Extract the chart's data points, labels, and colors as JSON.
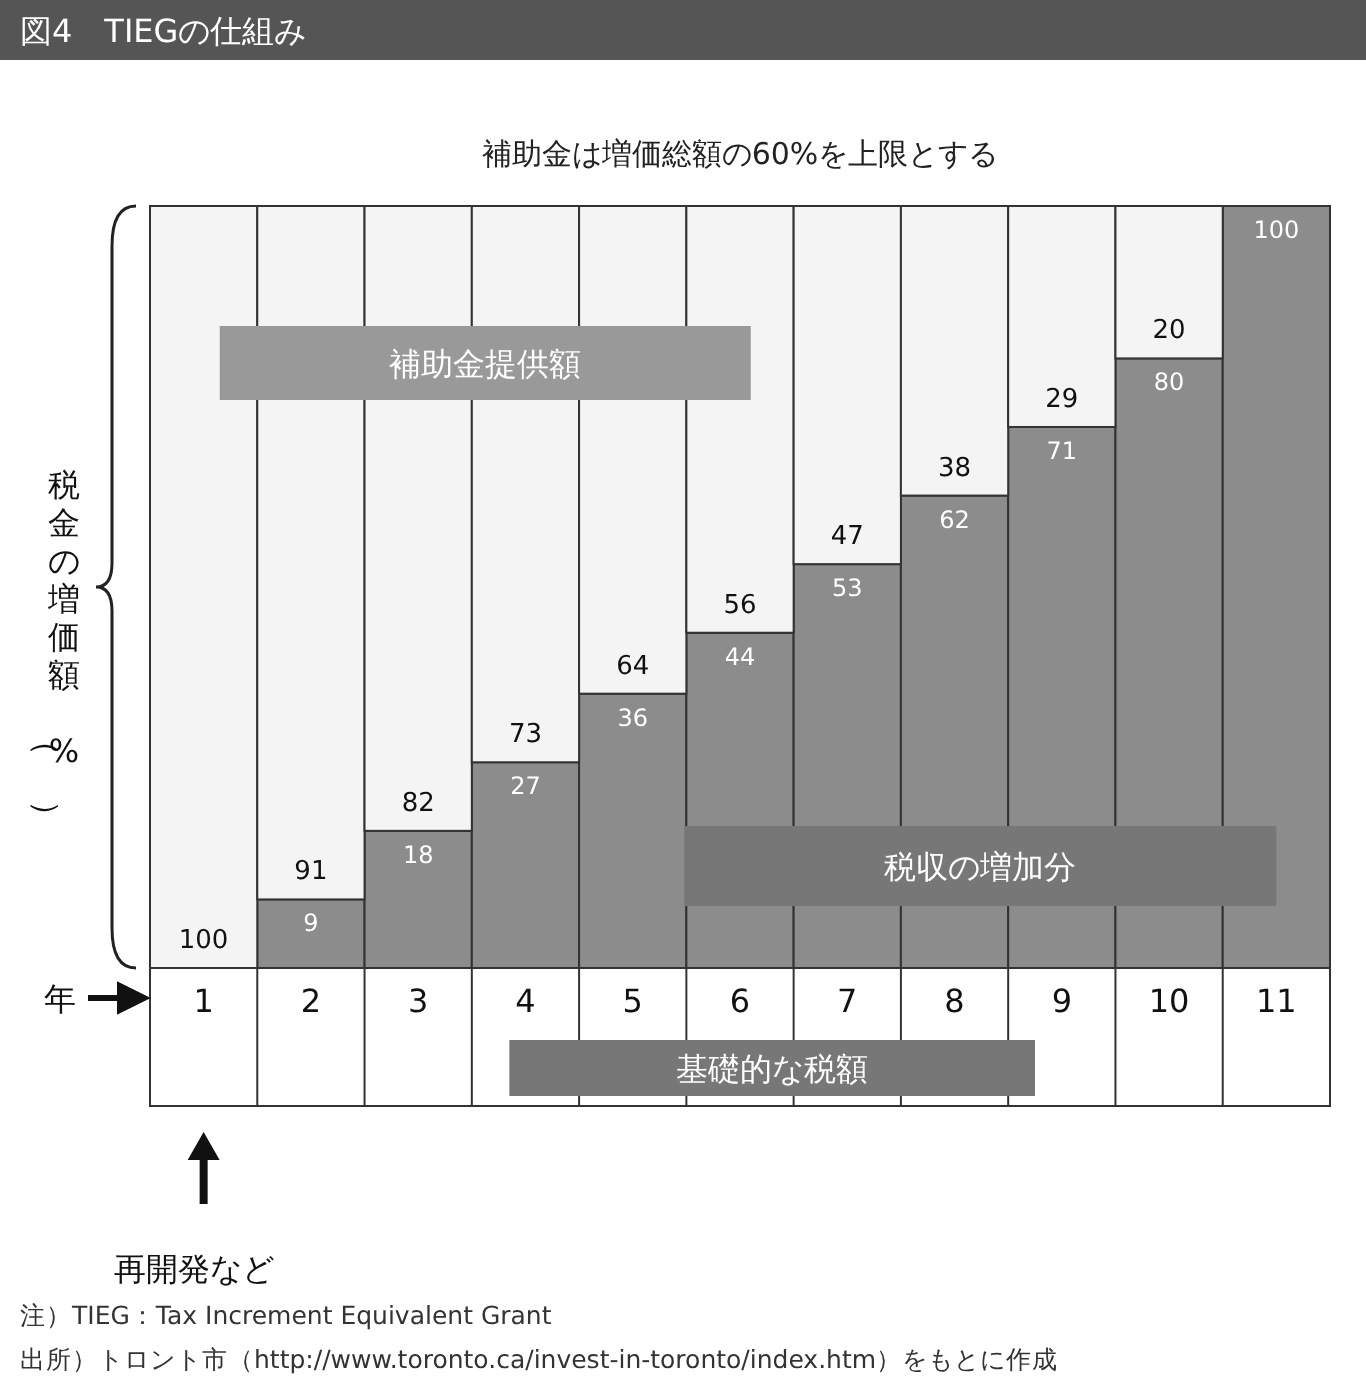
{
  "chart_data": {
    "type": "bar",
    "stacked": true,
    "title": "図4　TIEGの仕組み",
    "subtitle": "補助金は増価総額の60%を上限とする",
    "ylabel": "税金の増価額（%）",
    "xlabel": "年",
    "categories": [
      "1",
      "2",
      "3",
      "4",
      "5",
      "6",
      "7",
      "8",
      "9",
      "10",
      "11"
    ],
    "ylim": [
      0,
      100
    ],
    "series": [
      {
        "name": "税収の増加分",
        "color": "#8c8c8c",
        "values": [
          0,
          9,
          18,
          27,
          36,
          44,
          53,
          62,
          71,
          80,
          100
        ],
        "value_labels": [
          null,
          "9",
          "18",
          "27",
          "36",
          "44",
          "53",
          "62",
          "71",
          "80",
          "100"
        ]
      },
      {
        "name": "補助金提供額",
        "color": "#f4f4f4",
        "values": [
          100,
          91,
          82,
          73,
          64,
          56,
          47,
          38,
          29,
          20,
          0
        ],
        "value_labels": [
          "100",
          "91",
          "82",
          "73",
          "64",
          "56",
          "47",
          "38",
          "29",
          "20",
          null
        ]
      }
    ],
    "annotations": [
      "基礎的な税額",
      "再開発など",
      "注）TIEG：Tax Increment Equivalent Grant",
      "出所）トロント市（http://www.toronto.ca/invest-in-toronto/index.htm）をもとに作成"
    ]
  }
}
